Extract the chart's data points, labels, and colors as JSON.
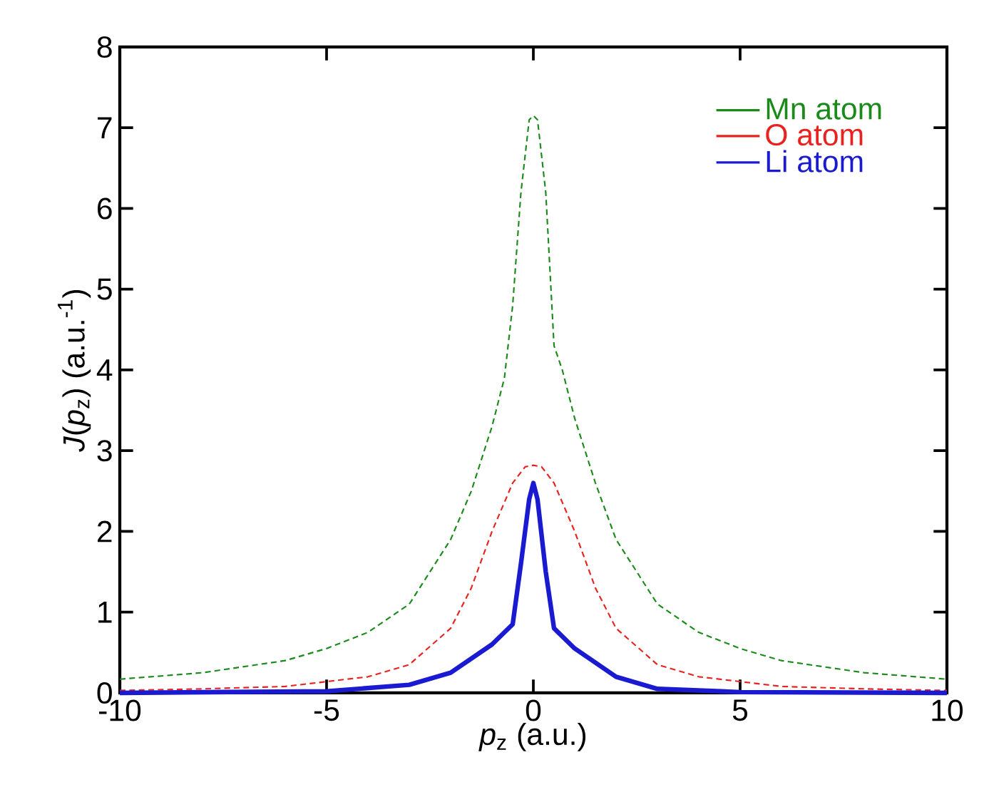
{
  "chart_data": {
    "type": "line",
    "xlabel": "*p*$_{z}$ (a.u.)",
    "ylabel": "*J*(*p*$_{z}$) (a.u.$^{-1}$)",
    "xlim": [
      -10,
      10
    ],
    "ylim": [
      0,
      8
    ],
    "xticks": [
      -10,
      -5,
      0,
      5,
      10
    ],
    "yticks": [
      0,
      1,
      2,
      3,
      4,
      5,
      6,
      7,
      8
    ],
    "legend": "top right",
    "series": [
      {
        "name": "Mn atom",
        "color": "#1a8a1a",
        "line_style": "dashed",
        "x": [
          -10,
          -8,
          -6,
          -5,
          -4,
          -3,
          -2,
          -1.5,
          -1,
          -0.7,
          -0.5,
          -0.3,
          -0.1,
          0,
          0.1,
          0.3,
          0.5,
          0.7,
          1,
          1.5,
          2,
          3,
          4,
          5,
          6,
          8,
          10
        ],
        "values": [
          0.17,
          0.25,
          0.4,
          0.55,
          0.75,
          1.1,
          1.9,
          2.5,
          3.3,
          3.9,
          4.8,
          6.2,
          7.1,
          7.15,
          7.1,
          6.2,
          4.3,
          4.0,
          3.4,
          2.6,
          1.9,
          1.1,
          0.75,
          0.55,
          0.4,
          0.25,
          0.17
        ]
      },
      {
        "name": "O atom",
        "color": "#e8231f",
        "line_style": "dashed",
        "x": [
          -10,
          -8,
          -6,
          -4,
          -3,
          -2,
          -1.5,
          -1,
          -0.5,
          -0.2,
          0,
          0.2,
          0.5,
          1,
          1.5,
          2,
          3,
          4,
          6,
          8,
          10
        ],
        "values": [
          0.03,
          0.05,
          0.08,
          0.2,
          0.35,
          0.8,
          1.3,
          2.0,
          2.6,
          2.8,
          2.82,
          2.8,
          2.6,
          2.0,
          1.3,
          0.8,
          0.35,
          0.2,
          0.08,
          0.05,
          0.03
        ]
      },
      {
        "name": "Li atom",
        "color": "#1a1ad0",
        "line_style": "solid",
        "x": [
          -10,
          -5,
          -3,
          -2,
          -1,
          -0.5,
          -0.3,
          -0.1,
          0,
          0.1,
          0.3,
          0.5,
          1,
          2,
          3,
          5,
          10
        ],
        "values": [
          0,
          0.02,
          0.1,
          0.25,
          0.6,
          0.85,
          1.6,
          2.4,
          2.6,
          2.4,
          1.5,
          0.8,
          0.55,
          0.2,
          0.05,
          0.01,
          0
        ]
      }
    ]
  }
}
